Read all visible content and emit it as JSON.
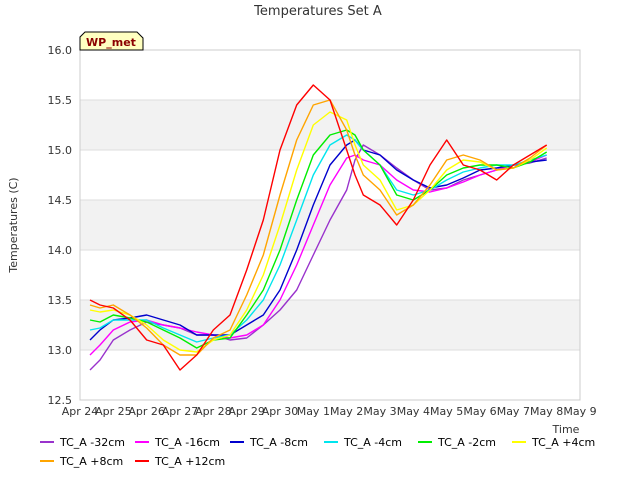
{
  "chart_data": {
    "type": "line",
    "title": "Temperatures Set A",
    "xlabel": "Time",
    "ylabel": "Temperatures (C)",
    "tag_label": "WP_met",
    "x_range": [
      0,
      15
    ],
    "ylim": [
      12.5,
      16.0
    ],
    "x_ticks": [
      {
        "v": 0,
        "label": "Apr 24"
      },
      {
        "v": 1,
        "label": "Apr 25"
      },
      {
        "v": 2,
        "label": "Apr 26"
      },
      {
        "v": 3,
        "label": "Apr 27"
      },
      {
        "v": 4,
        "label": "Apr 28"
      },
      {
        "v": 5,
        "label": "Apr 29"
      },
      {
        "v": 6,
        "label": "Apr 30"
      },
      {
        "v": 7,
        "label": "May 1"
      },
      {
        "v": 8,
        "label": "May 2"
      },
      {
        "v": 9,
        "label": "May 3"
      },
      {
        "v": 10,
        "label": "May 4"
      },
      {
        "v": 11,
        "label": "May 5"
      },
      {
        "v": 12,
        "label": "May 6"
      },
      {
        "v": 13,
        "label": "May 7"
      },
      {
        "v": 14,
        "label": "May 8"
      },
      {
        "v": 15,
        "label": "May 9"
      }
    ],
    "y_ticks": [
      {
        "v": 12.5,
        "label": "12.5"
      },
      {
        "v": 13.0,
        "label": "13.0"
      },
      {
        "v": 13.5,
        "label": "13.5"
      },
      {
        "v": 14.0,
        "label": "14.0"
      },
      {
        "v": 14.5,
        "label": "14.5"
      },
      {
        "v": 15.0,
        "label": "15.0"
      },
      {
        "v": 15.5,
        "label": "15.5"
      },
      {
        "v": 16.0,
        "label": "16.0"
      }
    ],
    "background_bands": "alternating light gray",
    "legend_placement": "bottom",
    "x": [
      0.3,
      0.6,
      1.0,
      1.5,
      2.0,
      2.5,
      3.0,
      3.5,
      4.0,
      4.5,
      5.0,
      5.5,
      6.0,
      6.5,
      7.0,
      7.5,
      8.0,
      8.25,
      8.5,
      9.0,
      9.5,
      10.0,
      10.5,
      11.0,
      11.5,
      12.0,
      12.5,
      13.0,
      13.5,
      14.0
    ],
    "series": [
      {
        "name": "TC_A -32cm",
        "color": "#9932cc",
        "values": [
          12.8,
          12.9,
          13.1,
          13.2,
          13.28,
          13.25,
          13.22,
          13.15,
          13.15,
          13.1,
          13.12,
          13.25,
          13.4,
          13.6,
          13.95,
          14.3,
          14.6,
          14.9,
          15.05,
          14.95,
          14.82,
          14.7,
          14.6,
          14.62,
          14.7,
          14.75,
          14.8,
          14.85,
          14.87,
          14.92
        ]
      },
      {
        "name": "TC_A -16cm",
        "color": "#ff00ff",
        "values": [
          12.95,
          13.05,
          13.2,
          13.28,
          13.3,
          13.25,
          13.22,
          13.18,
          13.15,
          13.12,
          13.15,
          13.25,
          13.5,
          13.85,
          14.25,
          14.65,
          14.92,
          14.95,
          14.9,
          14.85,
          14.7,
          14.6,
          14.58,
          14.62,
          14.68,
          14.75,
          14.8,
          14.85,
          14.88,
          14.95
        ]
      },
      {
        "name": "TC_A -8cm",
        "color": "#0000cd",
        "values": [
          13.1,
          13.2,
          13.3,
          13.32,
          13.35,
          13.3,
          13.25,
          13.15,
          13.15,
          13.15,
          13.25,
          13.35,
          13.6,
          14.0,
          14.45,
          14.85,
          15.05,
          15.1,
          15.0,
          14.95,
          14.8,
          14.7,
          14.62,
          14.65,
          14.72,
          14.8,
          14.82,
          14.85,
          14.88,
          14.9
        ]
      },
      {
        "name": "TC_A -4cm",
        "color": "#00e5ee",
        "values": [
          13.2,
          13.22,
          13.3,
          13.3,
          13.3,
          13.22,
          13.15,
          13.08,
          13.12,
          13.15,
          13.3,
          13.5,
          13.85,
          14.3,
          14.75,
          15.05,
          15.15,
          15.1,
          15.0,
          14.85,
          14.6,
          14.55,
          14.6,
          14.7,
          14.78,
          14.82,
          14.85,
          14.85,
          14.9,
          14.95
        ]
      },
      {
        "name": "TC_A -2cm",
        "color": "#00ee00",
        "values": [
          13.3,
          13.28,
          13.35,
          13.32,
          13.28,
          13.2,
          13.12,
          13.02,
          13.1,
          13.12,
          13.35,
          13.6,
          14.0,
          14.5,
          14.95,
          15.15,
          15.2,
          15.15,
          15.0,
          14.85,
          14.55,
          14.5,
          14.6,
          14.75,
          14.82,
          14.85,
          14.85,
          14.82,
          14.88,
          14.98
        ]
      },
      {
        "name": "TC_A +4cm",
        "color": "#ffff00",
        "values": [
          13.4,
          13.38,
          13.4,
          13.35,
          13.25,
          13.1,
          13.0,
          12.98,
          13.1,
          13.15,
          13.4,
          13.75,
          14.25,
          14.8,
          15.25,
          15.38,
          15.3,
          15.05,
          14.85,
          14.7,
          14.4,
          14.45,
          14.6,
          14.8,
          14.9,
          14.88,
          14.8,
          14.82,
          14.9,
          15.02
        ]
      },
      {
        "name": "TC_A +8cm",
        "color": "#ffa500",
        "values": [
          13.45,
          13.42,
          13.45,
          13.35,
          13.22,
          13.05,
          12.95,
          12.95,
          13.12,
          13.2,
          13.55,
          13.95,
          14.55,
          15.1,
          15.45,
          15.5,
          15.2,
          14.95,
          14.75,
          14.6,
          14.35,
          14.45,
          14.65,
          14.9,
          14.95,
          14.9,
          14.8,
          14.82,
          14.92,
          15.05
        ]
      },
      {
        "name": "TC_A +12cm",
        "color": "#ff0000",
        "values": [
          13.5,
          13.45,
          13.42,
          13.3,
          13.1,
          13.05,
          12.8,
          12.95,
          13.2,
          13.35,
          13.8,
          14.3,
          15.0,
          15.45,
          15.65,
          15.5,
          15.0,
          14.75,
          14.55,
          14.45,
          14.25,
          14.5,
          14.85,
          15.1,
          14.85,
          14.8,
          14.7,
          14.85,
          14.95,
          15.05
        ]
      }
    ]
  }
}
